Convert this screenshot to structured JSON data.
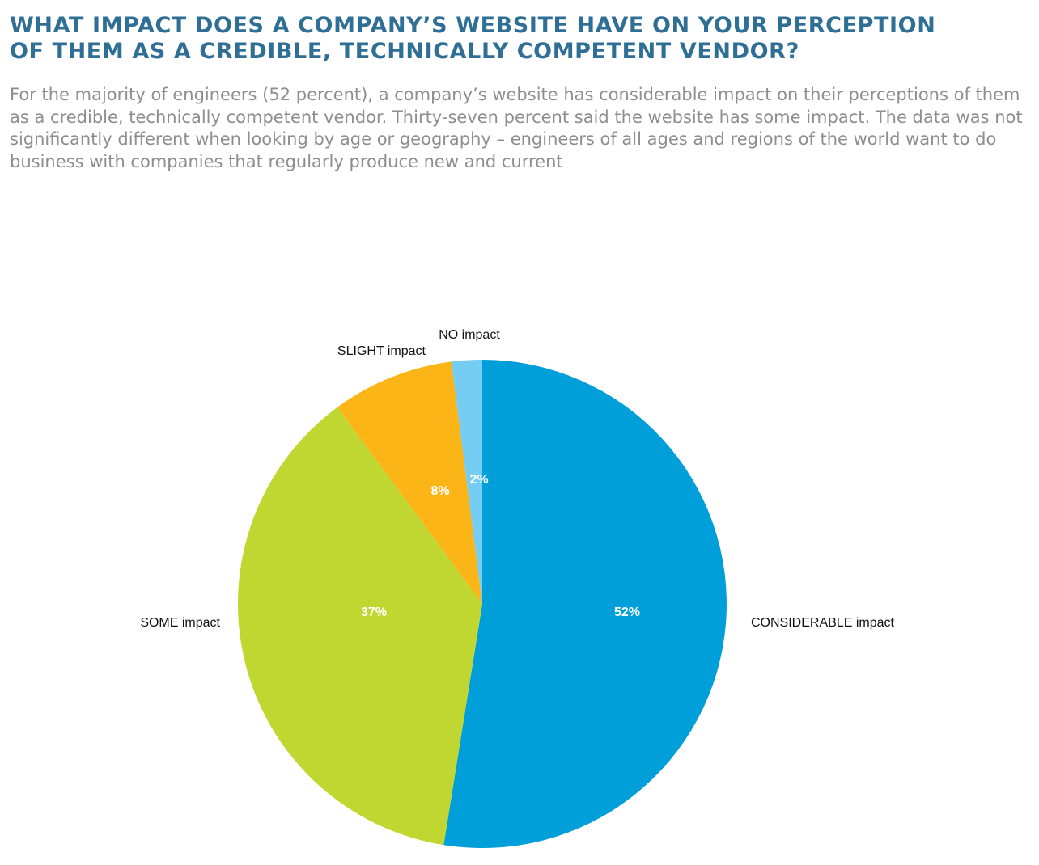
{
  "heading": {
    "line1": "WHAT IMPACT DOES A COMPANY’S WEBSITE HAVE ON YOUR PERCEPTION",
    "line2": "OF THEM AS A CREDIBLE, TECHNICALLY COMPETENT VENDOR?"
  },
  "intro": "For the majority of engineers (52 percent), a company’s website has considerable impact on their perceptions of them as a credible, technically competent vendor. Thirty-seven percent said the website has some impact. The data was not significantly different when looking by age or geography – engineers of all ages and regions of the world want to do business with companies that regularly produce new and current",
  "chart_data": {
    "type": "pie",
    "title": "",
    "start": "12 o'clock",
    "direction": "clockwise",
    "legend": "none",
    "slices": [
      {
        "label": "CONSIDERABLE impact",
        "value": 52,
        "display": "52%",
        "color": "#009fda"
      },
      {
        "label": "SOME impact",
        "value": 37,
        "display": "37%",
        "color": "#c0d732"
      },
      {
        "label": "SLIGHT impact",
        "value": 8,
        "display": "8%",
        "color": "#fbb517"
      },
      {
        "label": "NO impact",
        "value": 2,
        "display": "2%",
        "color": "#75cdf4"
      }
    ]
  }
}
